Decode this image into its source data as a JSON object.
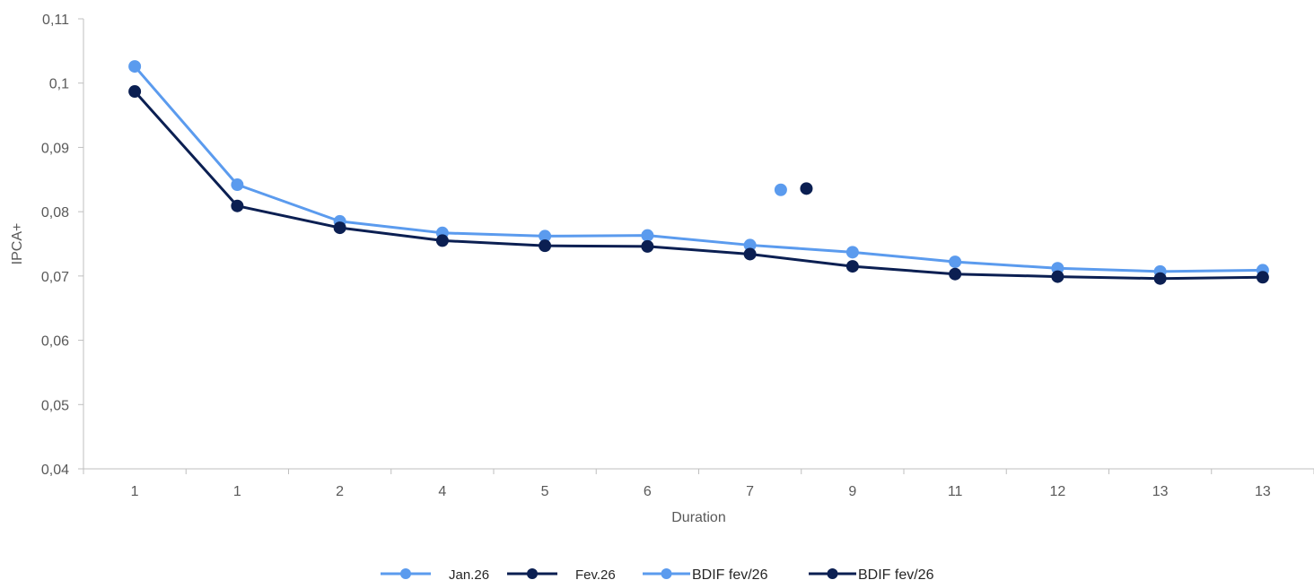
{
  "chart_data": {
    "type": "line",
    "categories": [
      "1",
      "1",
      "2",
      "4",
      "5",
      "6",
      "7",
      "9",
      "11",
      "12",
      "13",
      "13"
    ],
    "ylim": [
      0.04,
      0.11
    ],
    "yticks": [
      "0,04",
      "0,05",
      "0,06",
      "0,07",
      "0,08",
      "0,09",
      "0,1",
      "0,11"
    ],
    "xlabel": "Duration",
    "ylabel": "IPCA+",
    "grid": false,
    "legend_position": "bottom",
    "series": [
      {
        "name": "Jan.26",
        "color": "#5b9bee",
        "values": [
          0.1026,
          0.0842,
          0.0785,
          0.0767,
          0.0762,
          0.0763,
          0.0748,
          0.0737,
          0.0722,
          0.0712,
          0.0707,
          0.0709
        ]
      },
      {
        "name": "Fev.26",
        "color": "#0b1f52",
        "values": [
          0.0987,
          0.0809,
          0.0775,
          0.0755,
          0.0747,
          0.0746,
          0.0734,
          0.0715,
          0.0703,
          0.0699,
          0.0696,
          0.0698
        ]
      },
      {
        "name": "BDIF fev/26",
        "color": "#5b9bee",
        "points": [
          {
            "x": 6.3,
            "y": 0.0834
          }
        ]
      },
      {
        "name": "BDIF fev/26",
        "color": "#0b1f52",
        "points": [
          {
            "x": 6.55,
            "y": 0.0836
          }
        ]
      }
    ]
  }
}
